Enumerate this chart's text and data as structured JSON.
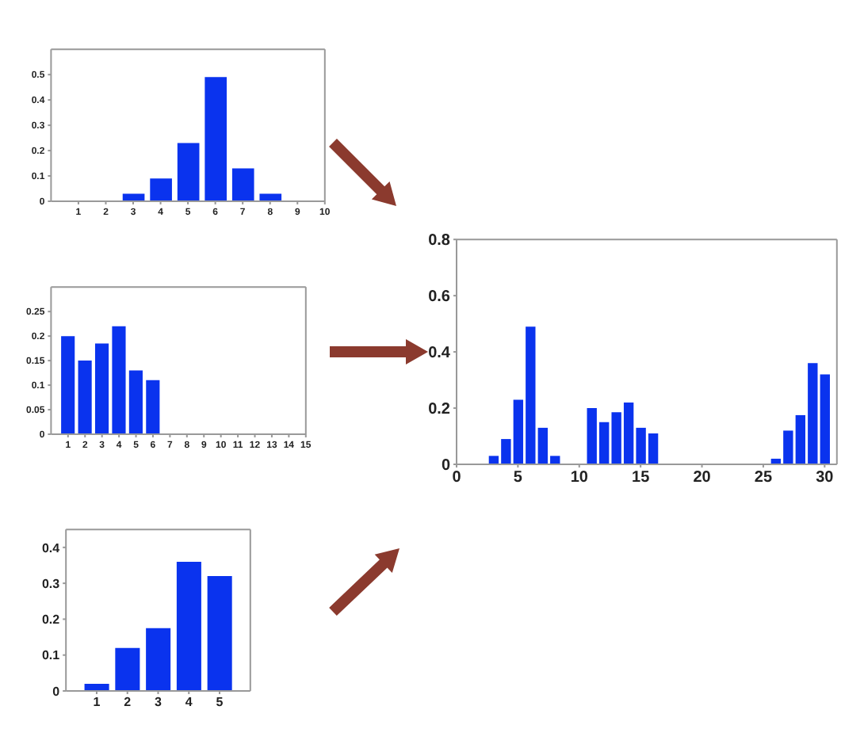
{
  "chart_data": [
    {
      "type": "bar",
      "x": [
        3,
        4,
        5,
        6,
        7,
        8
      ],
      "values": [
        0.03,
        0.09,
        0.23,
        0.49,
        0.13,
        0.03
      ],
      "color": "#0a33ee",
      "xlim": [
        0,
        10
      ],
      "xticks": [
        1,
        2,
        3,
        4,
        5,
        6,
        7,
        8,
        9,
        10
      ],
      "ylim": [
        0,
        0.6
      ],
      "yticks": [
        0,
        0.1,
        0.2,
        0.3,
        0.4,
        0.5
      ],
      "grid": false
    },
    {
      "type": "bar",
      "x": [
        1,
        2,
        3,
        4,
        5,
        6
      ],
      "values": [
        0.2,
        0.15,
        0.185,
        0.22,
        0.13,
        0.11
      ],
      "color": "#0a33ee",
      "xlim": [
        0,
        15
      ],
      "xticks": [
        1,
        2,
        3,
        4,
        5,
        6,
        7,
        8,
        9,
        10,
        11,
        12,
        13,
        14,
        15
      ],
      "ylim": [
        0,
        0.3
      ],
      "yticks": [
        0,
        0.05,
        0.1,
        0.15,
        0.2,
        0.25
      ],
      "grid": false
    },
    {
      "type": "bar",
      "x": [
        1,
        2,
        3,
        4,
        5
      ],
      "values": [
        0.02,
        0.12,
        0.175,
        0.36,
        0.32
      ],
      "color": "#0a33ee",
      "xlim": [
        0,
        6
      ],
      "xticks": [
        1,
        2,
        3,
        4,
        5
      ],
      "ylim": [
        0,
        0.45
      ],
      "yticks": [
        0,
        0.1,
        0.2,
        0.3,
        0.4
      ],
      "grid": false
    },
    {
      "type": "bar",
      "x": [
        3,
        4,
        5,
        6,
        7,
        8,
        11,
        12,
        13,
        14,
        15,
        16,
        26,
        27,
        28,
        29,
        30
      ],
      "values": [
        0.03,
        0.09,
        0.23,
        0.49,
        0.13,
        0.03,
        0.2,
        0.15,
        0.185,
        0.22,
        0.13,
        0.11,
        0.02,
        0.12,
        0.175,
        0.36,
        0.32
      ],
      "color": "#0a33ee",
      "xlim": [
        0,
        31
      ],
      "xticks": [
        0,
        5,
        10,
        15,
        20,
        25,
        30
      ],
      "ylim": [
        0,
        0.8
      ],
      "yticks": [
        0,
        0.2,
        0.4,
        0.6,
        0.8
      ],
      "grid": false
    }
  ]
}
